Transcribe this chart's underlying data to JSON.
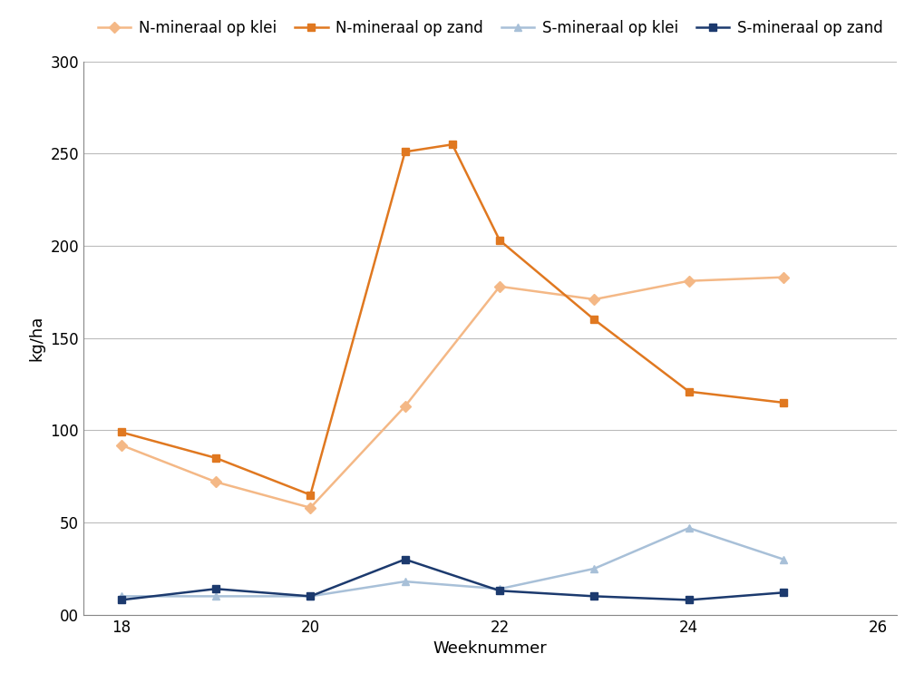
{
  "weeks_N_klei": [
    18,
    19,
    20,
    21,
    22,
    23,
    24,
    25
  ],
  "N_klei_vals": [
    92,
    72,
    58,
    113,
    178,
    171,
    181,
    183
  ],
  "weeks_N_zand": [
    18,
    19,
    20,
    21,
    21.5,
    22,
    23,
    24,
    25
  ],
  "N_zand_vals": [
    99,
    85,
    65,
    251,
    255,
    203,
    160,
    121,
    115
  ],
  "weeks_S_klei": [
    18,
    19,
    20,
    21,
    22,
    23,
    24,
    25
  ],
  "S_klei_vals": [
    10,
    10,
    10,
    18,
    14,
    25,
    47,
    30
  ],
  "weeks_S_zand": [
    18,
    19,
    20,
    21,
    22,
    23,
    24,
    25
  ],
  "S_zand_vals": [
    8,
    14,
    10,
    30,
    13,
    10,
    8,
    12
  ],
  "color_N_klei": "#F4B886",
  "color_N_zand": "#E07820",
  "color_S_klei": "#A8C0D8",
  "color_S_zand": "#1C3A6E",
  "xlabel": "Weeknummer",
  "ylabel": "kg/ha",
  "ylim": [
    0,
    300
  ],
  "xlim": [
    17.6,
    26.2
  ],
  "yticks": [
    0,
    50,
    100,
    150,
    200,
    250,
    300
  ],
  "xticks": [
    18,
    20,
    22,
    24,
    26
  ],
  "legend_labels": [
    "N-mineraal op klei",
    "N-mineraal op zand",
    "S-mineraal op klei",
    "S-mineraal op zand"
  ],
  "axis_fontsize": 13,
  "tick_fontsize": 12,
  "legend_fontsize": 12,
  "linewidth": 1.8,
  "markersize": 6
}
